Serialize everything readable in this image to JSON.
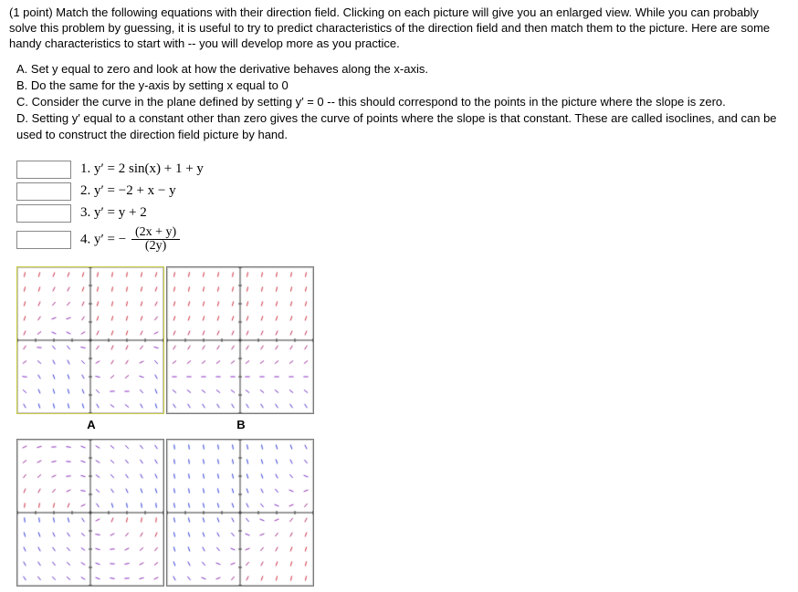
{
  "intro": "(1 point) Match the following equations with their direction field. Clicking on each picture will give you an enlarged view. While you can probably solve this problem by guessing, it is useful to try to predict characteristics of the direction field and then match them to the picture. Here are some handy characteristics to start with -- you will develop more as you practice.",
  "hints": {
    "A": "A. Set y equal to zero and look at how the derivative behaves along the x-axis.",
    "B": "B. Do the same for the y-axis by setting x equal to 0",
    "C": "C. Consider the curve in the plane defined by setting y′ = 0 -- this should correspond to the points in the picture where the slope is zero.",
    "D": "D. Setting y′ equal to a constant other than zero gives the curve of points where the slope is that constant. These are called isoclines, and can be used to construct the direction field picture by hand."
  },
  "equations": {
    "1": "1.  y′ = 2 sin(x) + 1 + y",
    "2": "2.  y′ = −2 + x − y",
    "3": "3.  y′ = y + 2",
    "4_prefix": "4.  y′ = −",
    "4_num": "(2x + y)",
    "4_den": "(2y)"
  },
  "labels": {
    "A": "A",
    "B": "B"
  },
  "charts": {
    "size": 160,
    "xlim": [
      -4,
      4
    ],
    "ylim": [
      -4,
      4
    ],
    "tick_step": 1,
    "grid_step": 0.8,
    "seg_len": 0.26,
    "colors": {
      "axis": "#3a3a3a",
      "border_inner": "#bfbfbf",
      "slope_neg": "#2b3bd8",
      "slope_mid": "#8a2bc2",
      "slope_pos": "#d02b3b",
      "bg": "#ffffff"
    },
    "line_width": 1.0,
    "fields": [
      {
        "id": "A",
        "type": "direction_field",
        "formula": "2*Math.sin(x)+1+y",
        "selected": true
      },
      {
        "id": "B",
        "type": "direction_field",
        "formula": "y+2",
        "selected": false
      },
      {
        "id": "C",
        "type": "direction_field",
        "formula": "(y===0?1e6:-(2*x+y)/(2*y))",
        "selected": false
      },
      {
        "id": "D",
        "type": "direction_field",
        "formula": "-2+x-y",
        "selected": false
      }
    ]
  }
}
